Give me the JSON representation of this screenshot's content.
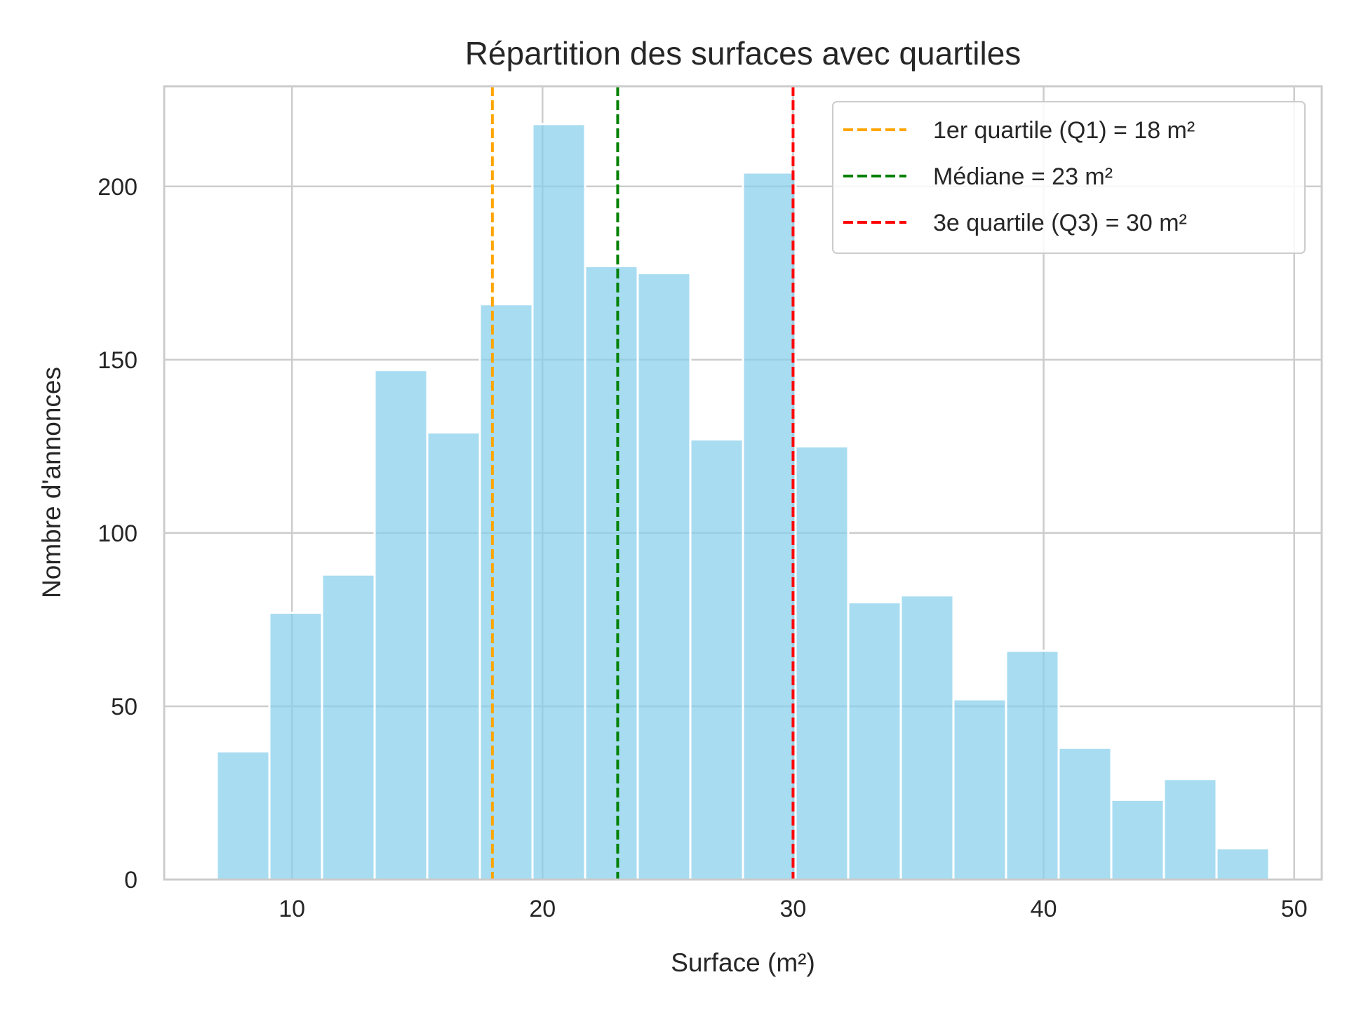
{
  "chart_data": {
    "type": "bar",
    "title": "Répartition des surfaces avec quartiles",
    "xlabel": "Surface (m²)",
    "ylabel": "Nombre d'annonces",
    "xlim": [
      4.9,
      51.1
    ],
    "ylim": [
      0,
      228.9
    ],
    "xticks": [
      10,
      20,
      30,
      40,
      50
    ],
    "yticks": [
      0,
      50,
      100,
      150,
      200
    ],
    "grid": true,
    "bar_color": "#87CEEB",
    "bins": [
      {
        "x0": 7.0,
        "x1": 9.1,
        "value": 37
      },
      {
        "x0": 9.1,
        "x1": 11.2,
        "value": 77
      },
      {
        "x0": 11.2,
        "x1": 13.3,
        "value": 88
      },
      {
        "x0": 13.3,
        "x1": 15.4,
        "value": 147
      },
      {
        "x0": 15.4,
        "x1": 17.5,
        "value": 129
      },
      {
        "x0": 17.5,
        "x1": 19.6,
        "value": 166
      },
      {
        "x0": 19.6,
        "x1": 21.7,
        "value": 218
      },
      {
        "x0": 21.7,
        "x1": 23.8,
        "value": 177
      },
      {
        "x0": 23.8,
        "x1": 25.9,
        "value": 175
      },
      {
        "x0": 25.9,
        "x1": 28.0,
        "value": 127
      },
      {
        "x0": 28.0,
        "x1": 30.1,
        "value": 204
      },
      {
        "x0": 30.1,
        "x1": 32.2,
        "value": 125
      },
      {
        "x0": 32.2,
        "x1": 34.3,
        "value": 80
      },
      {
        "x0": 34.3,
        "x1": 36.4,
        "value": 82
      },
      {
        "x0": 36.4,
        "x1": 38.5,
        "value": 52
      },
      {
        "x0": 38.5,
        "x1": 40.6,
        "value": 66
      },
      {
        "x0": 40.6,
        "x1": 42.7,
        "value": 38
      },
      {
        "x0": 42.7,
        "x1": 44.8,
        "value": 23
      },
      {
        "x0": 44.8,
        "x1": 46.9,
        "value": 29
      },
      {
        "x0": 46.9,
        "x1": 49.0,
        "value": 9
      }
    ],
    "reference_lines": [
      {
        "x": 18,
        "label": "1er quartile (Q1) = 18 m²",
        "color": "#FFA500"
      },
      {
        "x": 23,
        "label": "Médiane = 23 m²",
        "color": "#008000"
      },
      {
        "x": 30,
        "label": "3e quartile (Q3) = 30 m²",
        "color": "#FF0000"
      }
    ],
    "legend_position": "top-right"
  }
}
